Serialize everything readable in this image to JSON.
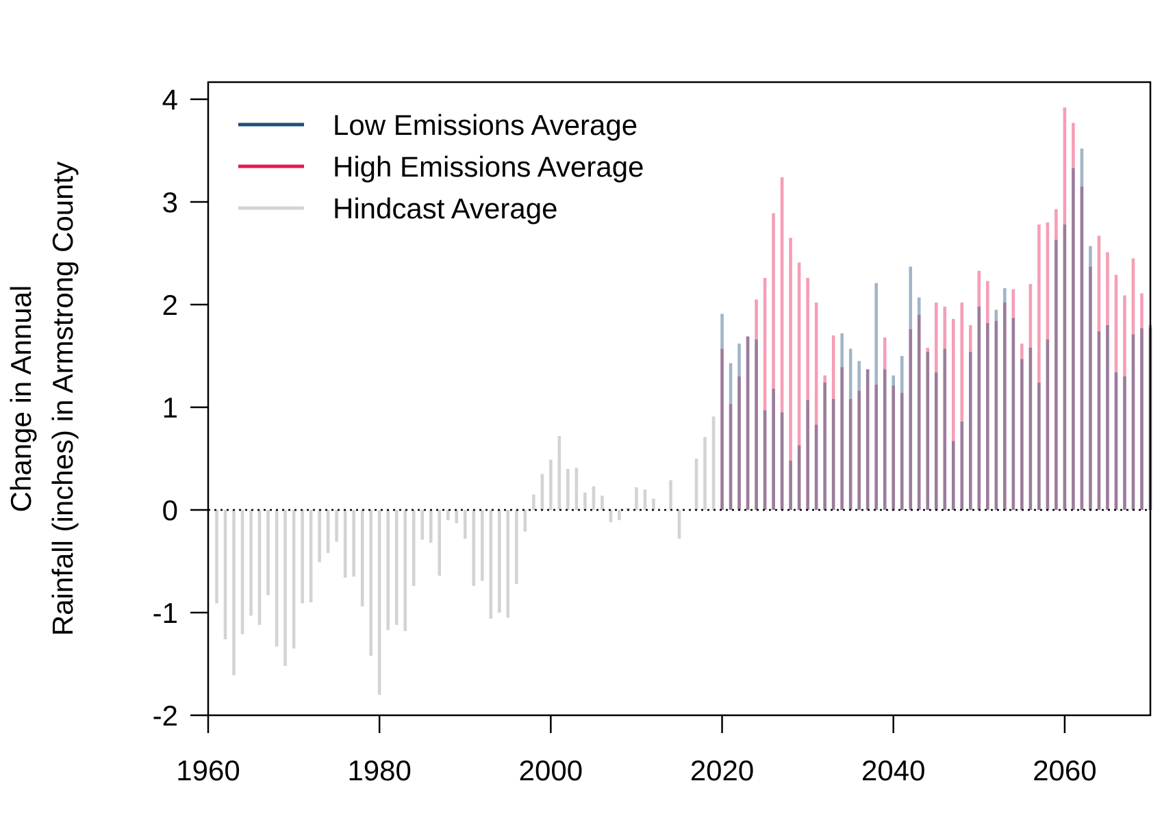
{
  "chart_data": {
    "type": "bar",
    "title": "",
    "xlabel": "",
    "ylabel_lines": [
      "Change in Annual",
      "Rainfall (inches) in Armstrong County"
    ],
    "xlim": [
      1960,
      2070
    ],
    "ylim": [
      -2,
      4
    ],
    "x_ticks": [
      1960,
      1980,
      2000,
      2020,
      2040,
      2060
    ],
    "x_tick_labels": [
      "1960",
      "1980",
      "2000",
      "2020",
      "2040",
      "2060"
    ],
    "y_ticks": [
      -2,
      -1,
      0,
      1,
      2,
      3,
      4
    ],
    "y_tick_labels": [
      "-2",
      "-1",
      "0",
      "1",
      "2",
      "3",
      "4"
    ],
    "grid": false,
    "zero_line": "dotted",
    "legend_position": "top-left",
    "series": [
      {
        "name": "Hindcast Average",
        "color": "#d3d3d3",
        "x": [
          1961,
          1962,
          1963,
          1964,
          1965,
          1966,
          1967,
          1968,
          1969,
          1970,
          1971,
          1972,
          1973,
          1974,
          1975,
          1976,
          1977,
          1978,
          1979,
          1980,
          1981,
          1982,
          1983,
          1984,
          1985,
          1986,
          1987,
          1988,
          1989,
          1990,
          1991,
          1992,
          1993,
          1994,
          1995,
          1996,
          1997,
          1998,
          1999,
          2000,
          2001,
          2002,
          2003,
          2004,
          2005,
          2006,
          2007,
          2008,
          2009,
          2010,
          2011,
          2012,
          2013,
          2014,
          2015,
          2016,
          2017,
          2018,
          2019
        ],
        "values": [
          -0.91,
          -1.26,
          -1.61,
          -1.21,
          -1.03,
          -1.12,
          -0.83,
          -1.33,
          -1.52,
          -1.35,
          -0.91,
          -0.9,
          -0.51,
          -0.42,
          -0.31,
          -0.66,
          -0.65,
          -0.94,
          -1.42,
          -1.8,
          -1.17,
          -1.12,
          -1.18,
          -0.74,
          -0.29,
          -0.32,
          -0.64,
          -0.1,
          -0.13,
          -0.28,
          -0.74,
          -0.69,
          -1.06,
          -1.0,
          -1.05,
          -0.72,
          -0.21,
          0.15,
          0.35,
          0.49,
          0.72,
          0.4,
          0.41,
          0.17,
          0.23,
          0.14,
          -0.12,
          -0.1,
          0.02,
          0.22,
          0.2,
          0.11,
          0.0,
          0.29,
          -0.28,
          0.0,
          0.5,
          0.71,
          0.91
        ]
      },
      {
        "name": "Low Emissions Average",
        "color": "#1f4e79",
        "x": [
          2020,
          2021,
          2022,
          2023,
          2024,
          2025,
          2026,
          2027,
          2028,
          2029,
          2030,
          2031,
          2032,
          2033,
          2034,
          2035,
          2036,
          2037,
          2038,
          2039,
          2040,
          2041,
          2042,
          2043,
          2044,
          2045,
          2046,
          2047,
          2048,
          2049,
          2050,
          2051,
          2052,
          2053,
          2054,
          2055,
          2056,
          2057,
          2058,
          2059,
          2060,
          2061,
          2062,
          2063,
          2064,
          2065,
          2066,
          2067,
          2068,
          2069,
          2070
        ],
        "values": [
          1.91,
          1.43,
          1.62,
          1.69,
          1.66,
          0.97,
          1.18,
          0.95,
          0.48,
          0.63,
          1.07,
          0.83,
          1.24,
          1.08,
          1.72,
          1.57,
          1.45,
          1.37,
          2.21,
          1.37,
          1.31,
          1.5,
          2.37,
          2.07,
          1.54,
          1.34,
          1.57,
          0.67,
          0.86,
          1.54,
          1.98,
          1.82,
          1.95,
          2.16,
          1.87,
          1.47,
          1.58,
          1.24,
          1.66,
          2.63,
          2.78,
          3.33,
          3.52,
          2.57,
          1.74,
          1.8,
          1.34,
          1.3,
          1.71,
          1.77,
          1.8
        ]
      },
      {
        "name": "High Emissions Average",
        "color": "#e8194f",
        "x": [
          2020,
          2021,
          2022,
          2023,
          2024,
          2025,
          2026,
          2027,
          2028,
          2029,
          2030,
          2031,
          2032,
          2033,
          2034,
          2035,
          2036,
          2037,
          2038,
          2039,
          2040,
          2041,
          2042,
          2043,
          2044,
          2045,
          2046,
          2047,
          2048,
          2049,
          2050,
          2051,
          2052,
          2053,
          2054,
          2055,
          2056,
          2057,
          2058,
          2059,
          2060,
          2061,
          2062,
          2063,
          2064,
          2065,
          2066,
          2067,
          2068,
          2069,
          2070
        ],
        "values": [
          1.57,
          1.03,
          1.3,
          1.69,
          2.05,
          2.26,
          2.89,
          3.24,
          2.65,
          2.41,
          2.26,
          2.02,
          1.31,
          1.7,
          1.39,
          1.08,
          1.16,
          1.37,
          1.22,
          1.68,
          1.21,
          1.14,
          1.76,
          1.9,
          1.58,
          2.02,
          1.98,
          1.86,
          2.02,
          1.8,
          2.33,
          2.23,
          1.84,
          2.02,
          2.15,
          1.62,
          2.2,
          2.78,
          2.8,
          2.93,
          3.92,
          3.77,
          3.15,
          2.37,
          2.67,
          2.51,
          2.29,
          2.09,
          2.45,
          2.11,
          1.77
        ]
      }
    ]
  }
}
